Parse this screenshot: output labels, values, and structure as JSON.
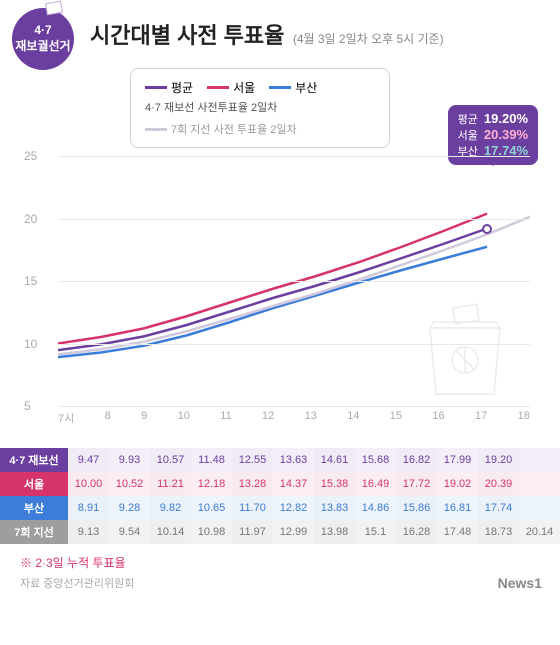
{
  "badge": {
    "line1": "4·7",
    "line2": "재보궐선거"
  },
  "header": {
    "title": "시간대별 사전 투표율",
    "subtitle": "(4월 3일 2일차 오후 5시 기준)"
  },
  "legend": {
    "items": [
      {
        "label": "평균",
        "color": "#6b3fa0"
      },
      {
        "label": "서울",
        "color": "#d6336c"
      },
      {
        "label": "부산",
        "color": "#3b7dd8"
      }
    ],
    "sub": "4·7 재보선 사전투표율 2일차",
    "ref": {
      "label": "7회 지선 사전 투표율 2일차",
      "color": "#d0c8dc"
    }
  },
  "result": {
    "bg": "#6b3fa0",
    "rows": [
      {
        "label": "평균",
        "value": "19.20%",
        "color": "#ffffff"
      },
      {
        "label": "서울",
        "value": "20.39%",
        "color": "#ffb0d0"
      },
      {
        "label": "부산",
        "value": "17.74%",
        "color": "#8fd4d4"
      }
    ]
  },
  "chart": {
    "xlabels": [
      "7시",
      "8",
      "9",
      "10",
      "11",
      "12",
      "13",
      "14",
      "15",
      "16",
      "17",
      "18"
    ],
    "xcount": 12,
    "ymin": 5,
    "ymax": 25,
    "ystep": 5,
    "grid_color": "#e8e8e8",
    "bg": "#ffffff",
    "series": [
      {
        "name": "평균",
        "color": "#6b3fa0",
        "width": 2.5,
        "values": [
          9.47,
          9.93,
          10.57,
          11.48,
          12.55,
          13.63,
          14.61,
          15.68,
          16.82,
          17.99,
          19.2
        ],
        "dot": true
      },
      {
        "name": "서울",
        "color": "#d6336c",
        "width": 2.5,
        "values": [
          10.0,
          10.52,
          11.21,
          12.18,
          13.28,
          14.37,
          15.38,
          16.49,
          17.72,
          19.02,
          20.39
        ]
      },
      {
        "name": "부산",
        "color": "#3b7dd8",
        "width": 2.5,
        "values": [
          8.91,
          9.28,
          9.82,
          10.65,
          11.7,
          12.82,
          13.83,
          14.86,
          15.86,
          16.81,
          17.74
        ]
      },
      {
        "name": "7회지선",
        "color": "#d0c8dc",
        "width": 2.5,
        "values": [
          9.13,
          9.54,
          10.14,
          10.98,
          11.97,
          12.99,
          13.98,
          15.1,
          16.28,
          17.48,
          18.73,
          20.14
        ]
      }
    ]
  },
  "table": {
    "rows": [
      {
        "header": "4·7 재보선",
        "hbg": "#6b3fa0",
        "rowbg": "#f4eef9",
        "txt": "#6b3fa0",
        "cells": [
          "9.47",
          "9.93",
          "10.57",
          "11.48",
          "12.55",
          "13.63",
          "14.61",
          "15.68",
          "16.82",
          "17.99",
          "19.20",
          ""
        ]
      },
      {
        "header": "서울",
        "hbg": "#d6336c",
        "rowbg": "#fbeef3",
        "txt": "#d6336c",
        "cells": [
          "10.00",
          "10.52",
          "11.21",
          "12.18",
          "13.28",
          "14.37",
          "15.38",
          "16.49",
          "17.72",
          "19.02",
          "20.39",
          ""
        ]
      },
      {
        "header": "부산",
        "hbg": "#3b7dd8",
        "rowbg": "#eef4fb",
        "txt": "#3b7dd8",
        "cells": [
          "8.91",
          "9.28",
          "9.82",
          "10.65",
          "11.70",
          "12.82",
          "13.83",
          "14.86",
          "15.86",
          "16.81",
          "17.74",
          ""
        ]
      },
      {
        "header": "7회 지선",
        "hbg": "#9e9e9e",
        "rowbg": "#f2f2f2",
        "txt": "#777",
        "cells": [
          "9.13",
          "9.54",
          "10.14",
          "10.98",
          "11.97",
          "12.99",
          "13.98",
          "15.1",
          "16.28",
          "17.48",
          "18.73",
          "20.14"
        ]
      }
    ]
  },
  "footer": {
    "note": "※ 2·3일 누적 투표율",
    "source": "자료  중앙선거관리위원회",
    "logo": "News1"
  }
}
